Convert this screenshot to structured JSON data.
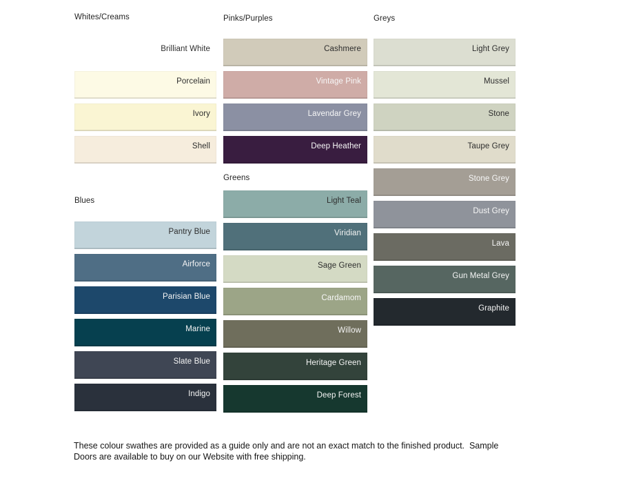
{
  "page": {
    "background": "#ffffff"
  },
  "palette_columns": [
    {
      "sections": [
        {
          "title": "Whites/Creams",
          "swatches": [
            {
              "name": "Brilliant White",
              "bg": "#FFFFFF",
              "fg": "#2D2D2D"
            },
            {
              "name": "Porcelain",
              "bg": "#FDFAE5",
              "fg": "#2D2D2D"
            },
            {
              "name": "Ivory",
              "bg": "#FAF5D3",
              "fg": "#2D2D2D"
            },
            {
              "name": "Shell",
              "bg": "#F6EDDD",
              "fg": "#2D2D2D"
            }
          ]
        },
        {
          "title": "Blues",
          "swatches": [
            {
              "name": "Pantry Blue",
              "bg": "#C2D4DB",
              "fg": "#2D2D2D"
            },
            {
              "name": "Airforce",
              "bg": "#4F6E85",
              "fg": "#F5F5F5"
            },
            {
              "name": "Parisian Blue",
              "bg": "#1D486B",
              "fg": "#F5F5F5"
            },
            {
              "name": "Marine",
              "bg": "#06404F",
              "fg": "#F5F5F5"
            },
            {
              "name": "Slate Blue",
              "bg": "#3F4654",
              "fg": "#F5F5F5"
            },
            {
              "name": "Indigo",
              "bg": "#2A313C",
              "fg": "#F5F5F5"
            }
          ]
        }
      ]
    },
    {
      "sections": [
        {
          "title": "Pinks/Purples",
          "swatches": [
            {
              "name": "Cashmere",
              "bg": "#D1CBBA",
              "fg": "#2D2D2D"
            },
            {
              "name": "Vintage Pink",
              "bg": "#CFACA7",
              "fg": "#F7F7F7"
            },
            {
              "name": "Lavendar Grey",
              "bg": "#8B90A3",
              "fg": "#F7F7F7"
            },
            {
              "name": "Deep Heather",
              "bg": "#391D40",
              "fg": "#F7F7F7"
            }
          ]
        },
        {
          "title": "Greens",
          "swatches": [
            {
              "name": "Light Teal",
              "bg": "#8CACA8",
              "fg": "#2D2D2D"
            },
            {
              "name": "Viridian",
              "bg": "#50707A",
              "fg": "#F5F5F5"
            },
            {
              "name": "Sage Green",
              "bg": "#D4DAC4",
              "fg": "#2D2D2D"
            },
            {
              "name": "Cardamom",
              "bg": "#9CA587",
              "fg": "#F7F7F7"
            },
            {
              "name": "Willow",
              "bg": "#6F6E5C",
              "fg": "#F5F5F5"
            },
            {
              "name": "Heritage Green",
              "bg": "#33433B",
              "fg": "#F5F5F5"
            },
            {
              "name": "Deep Forest",
              "bg": "#16382F",
              "fg": "#F5F5F5"
            }
          ]
        }
      ]
    },
    {
      "sections": [
        {
          "title": "Greys",
          "swatches": [
            {
              "name": "Light Grey",
              "bg": "#DCDED1",
              "fg": "#2D2D2D"
            },
            {
              "name": "Mussel",
              "bg": "#E3E6D6",
              "fg": "#2D2D2D"
            },
            {
              "name": "Stone",
              "bg": "#CFD3C1",
              "fg": "#2D2D2D"
            },
            {
              "name": "Taupe Grey",
              "bg": "#E0DCCB",
              "fg": "#2D2D2D"
            },
            {
              "name": "Stone Grey",
              "bg": "#A49E95",
              "fg": "#F7F7F7"
            },
            {
              "name": "Dust Grey",
              "bg": "#8F939B",
              "fg": "#F7F7F7"
            },
            {
              "name": "Lava",
              "bg": "#6B6B62",
              "fg": "#F5F5F5"
            },
            {
              "name": "Gun Metal Grey",
              "bg": "#566661",
              "fg": "#F5F5F5"
            },
            {
              "name": "Graphite",
              "bg": "#23292E",
              "fg": "#F5F5F5"
            }
          ]
        }
      ]
    }
  ],
  "footer": {
    "line1": "These colour swathes are provided as a guide only and are not an exact match to the finished product.  Sample",
    "line2": "Doors are available to buy on our Website with free shipping."
  }
}
